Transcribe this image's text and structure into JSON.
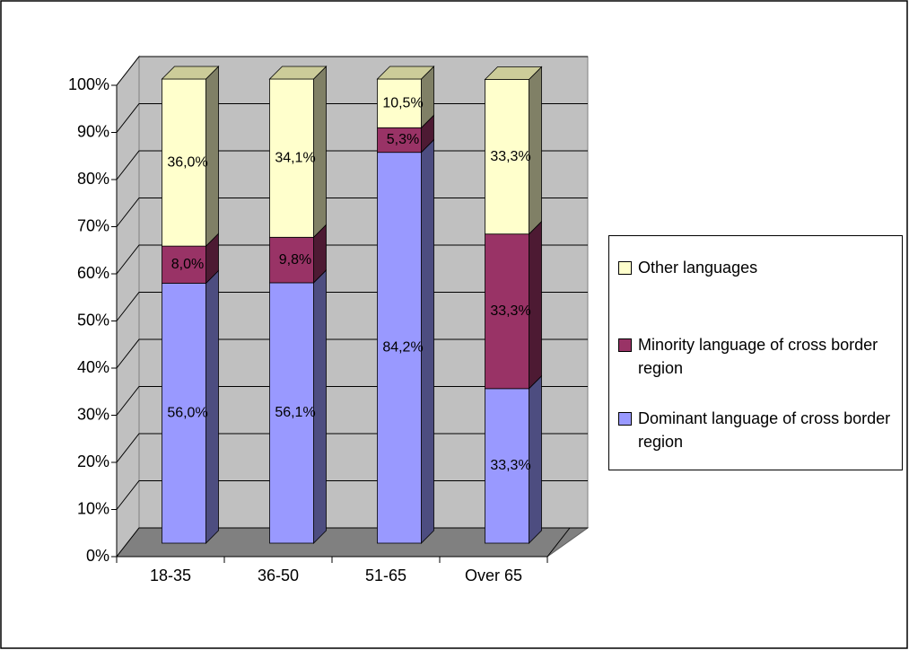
{
  "chart_data": {
    "type": "stacked_bar_3d",
    "categories": [
      "18-35",
      "36-50",
      "51-65",
      "Over 65"
    ],
    "series": [
      {
        "name": "Dominant language of cross border region",
        "color": "#9999ff",
        "values": [
          56.0,
          56.1,
          84.2,
          33.3
        ],
        "value_labels": [
          "56,0%",
          "56,1%",
          "84,2%",
          "33,3%"
        ]
      },
      {
        "name": "Minority language of cross border region",
        "color": "#993366",
        "values": [
          8.0,
          9.8,
          5.3,
          33.3
        ],
        "value_labels": [
          "8,0%",
          "9,8%",
          "5,3%",
          "33,3%"
        ]
      },
      {
        "name": "Other languages",
        "color": "#ffffcc",
        "values": [
          36.0,
          34.1,
          10.5,
          33.3
        ],
        "value_labels": [
          "36,0%",
          "34,1%",
          "10,5%",
          "33,3%"
        ]
      }
    ],
    "ylim": [
      0,
      100
    ],
    "yticks": [
      {
        "value": 0,
        "label": "0%"
      },
      {
        "value": 10,
        "label": "10%"
      },
      {
        "value": 20,
        "label": "20%"
      },
      {
        "value": 30,
        "label": "30%"
      },
      {
        "value": 40,
        "label": "40%"
      },
      {
        "value": 50,
        "label": "50%"
      },
      {
        "value": 60,
        "label": "60%"
      },
      {
        "value": 70,
        "label": "70%"
      },
      {
        "value": 80,
        "label": "80%"
      },
      {
        "value": 90,
        "label": "90%"
      },
      {
        "value": 100,
        "label": "100%"
      }
    ],
    "grid": true,
    "legend": "right"
  }
}
